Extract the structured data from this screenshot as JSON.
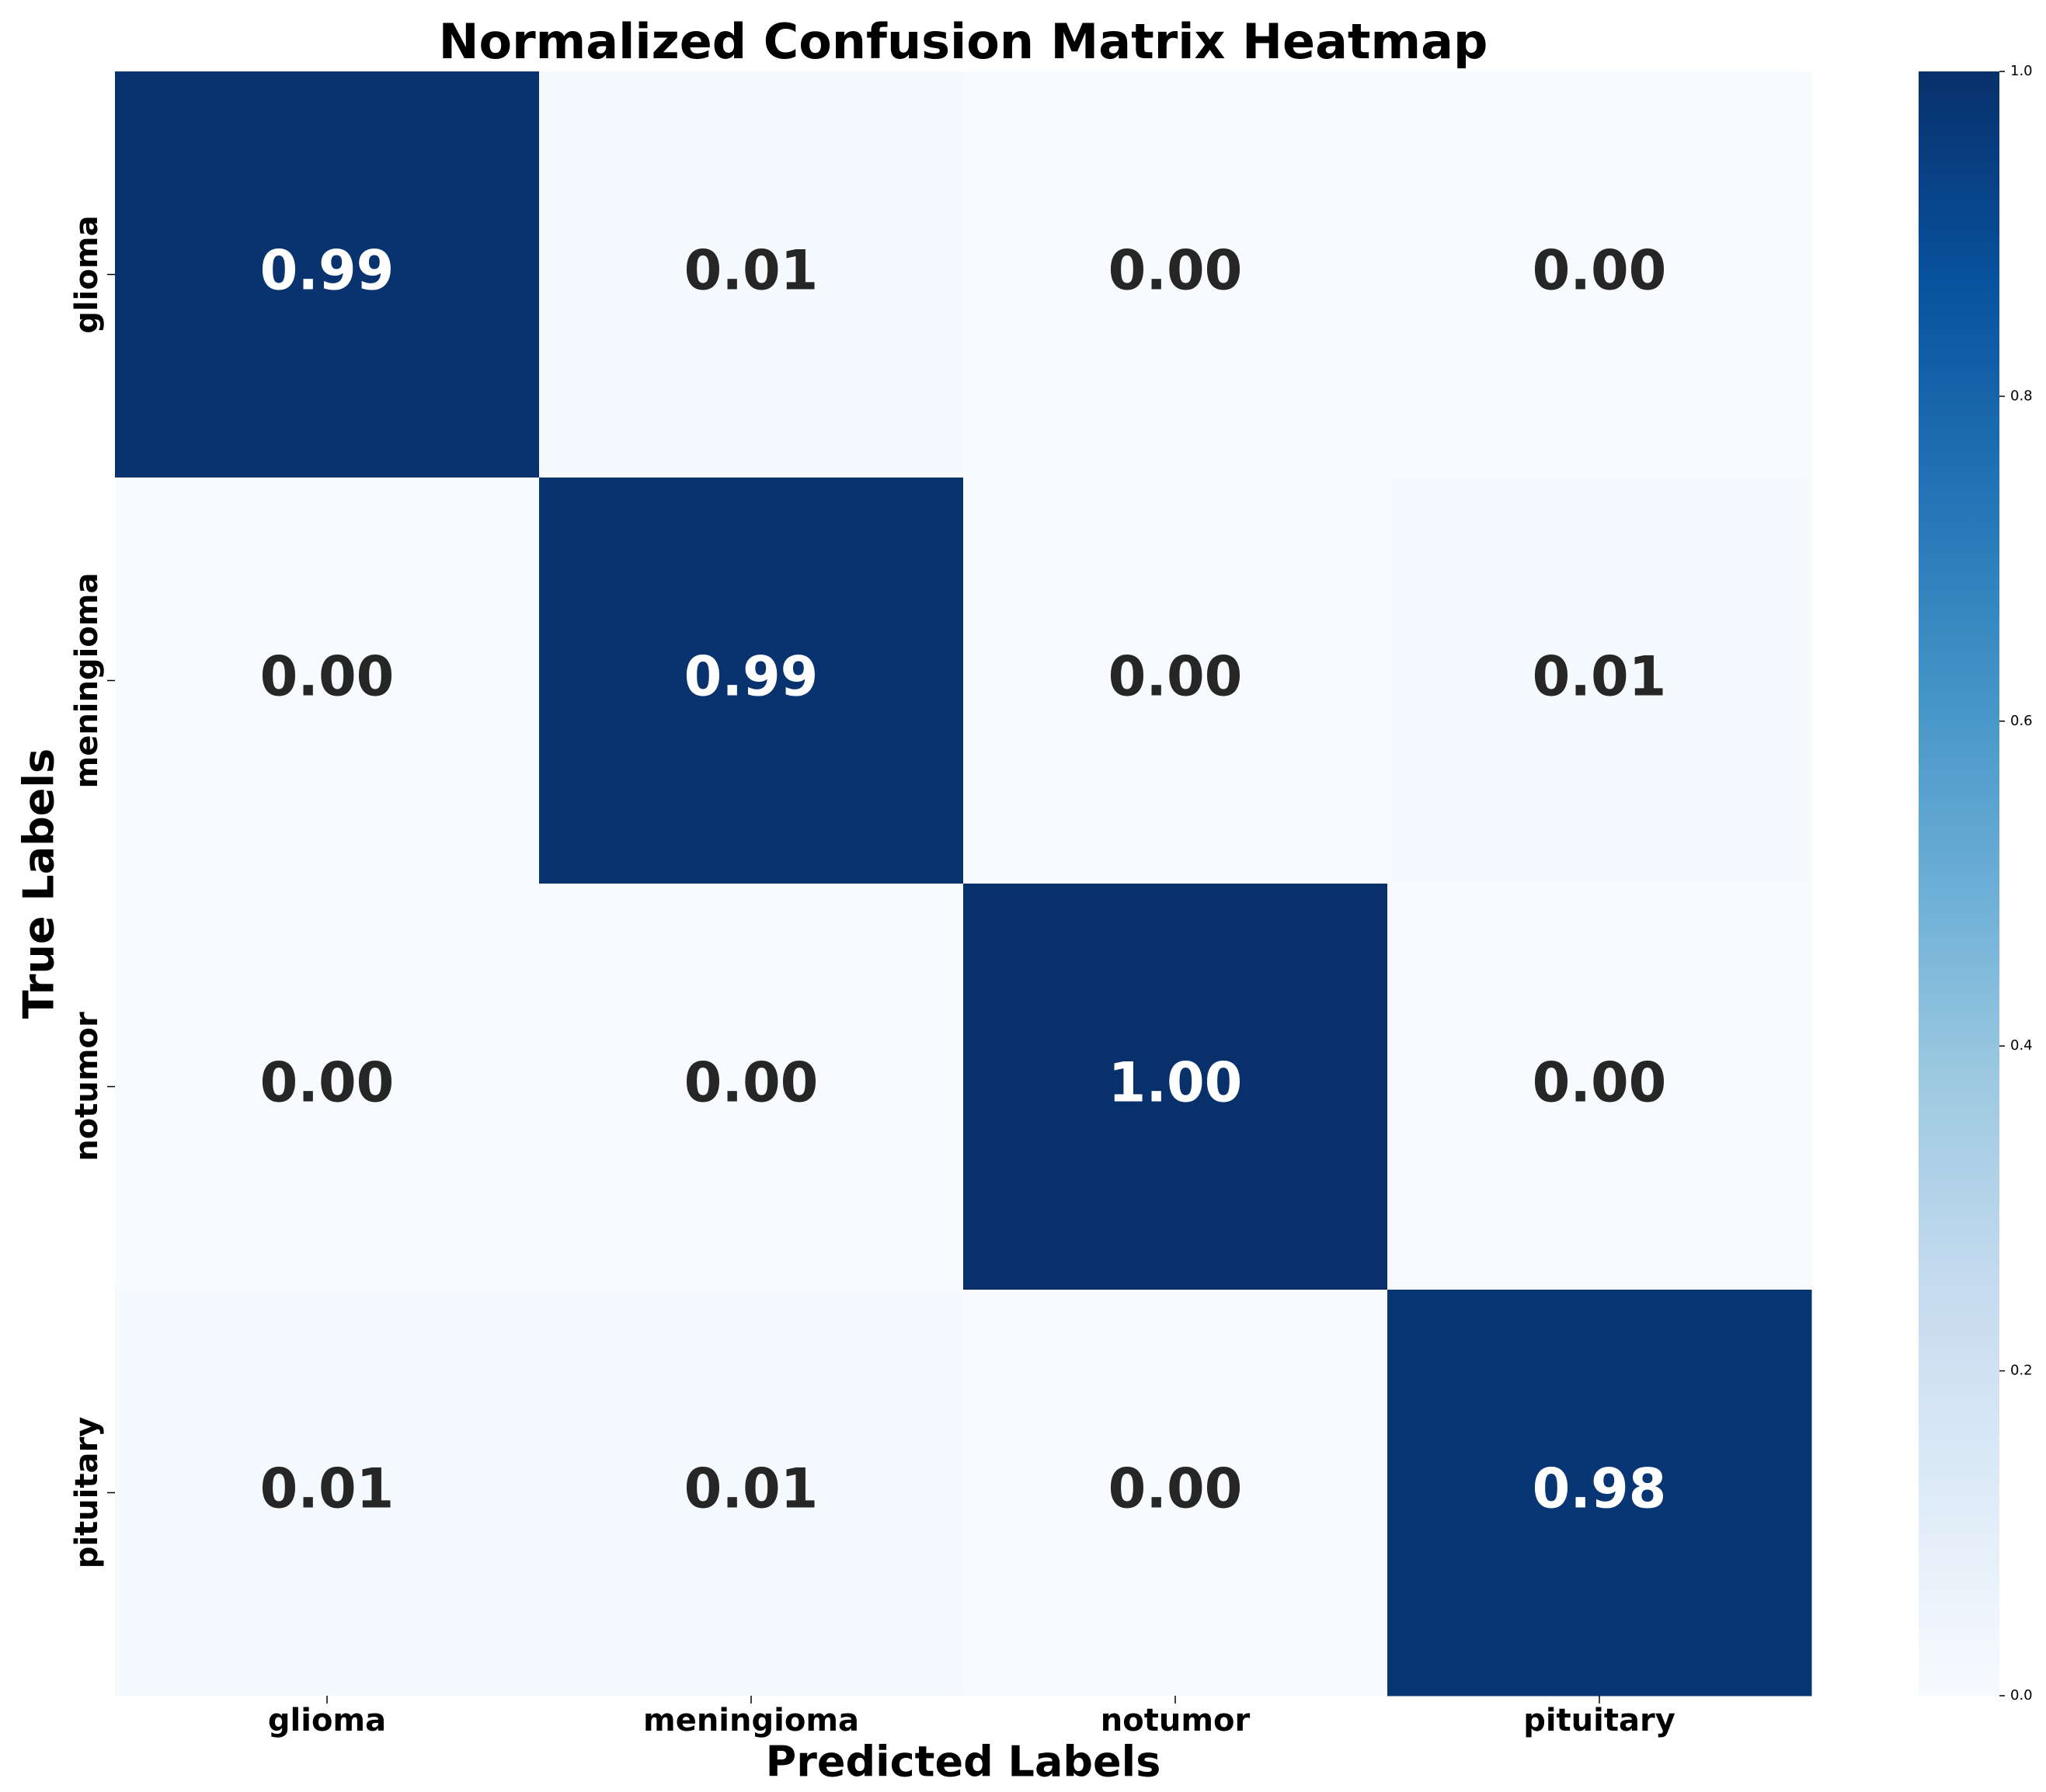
{
  "chart_data": {
    "type": "heatmap",
    "title": "Normalized Confusion Matrix Heatmap",
    "x_label": "Predicted Labels",
    "y_label": "True Labels",
    "columns": [
      "glioma",
      "meningioma",
      "notumor",
      "pituitary"
    ],
    "rows": [
      "glioma",
      "meningioma",
      "notumor",
      "pituitary"
    ],
    "values": [
      [
        0.99,
        0.01,
        0,
        0
      ],
      [
        0,
        0.99,
        0,
        0.01
      ],
      [
        0,
        0,
        1,
        0
      ],
      [
        0.01,
        0.01,
        0,
        0.98
      ]
    ],
    "value_labels": [
      [
        "0.99",
        "0.01",
        "0.00",
        "0.00"
      ],
      [
        "0.00",
        "0.99",
        "0.00",
        "0.01"
      ],
      [
        "0.00",
        "0.00",
        "1.00",
        "0.00"
      ],
      [
        "0.01",
        "0.01",
        "0.00",
        "0.98"
      ]
    ],
    "colormap": "Blues",
    "zlim": [
      0,
      1
    ],
    "zticks": [
      {
        "value": 0,
        "label": "0.0"
      },
      0.2,
      0.4,
      0.6,
      0.8,
      {
        "value": 1,
        "label": "1.0"
      }
    ]
  }
}
